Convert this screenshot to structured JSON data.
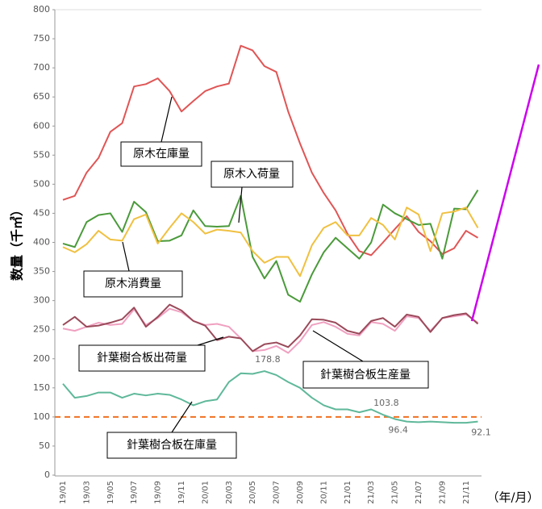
{
  "chart_data": {
    "type": "line",
    "y_label": "数量（千㎥）",
    "x_label": "（年/月）",
    "categories": [
      "19/01",
      null,
      "19/03",
      null,
      "19/05",
      null,
      "19/07",
      null,
      "19/09",
      null,
      "19/11",
      null,
      "20/01",
      null,
      "20/03",
      null,
      "20/05",
      null,
      "20/07",
      null,
      "20/09",
      null,
      "20/11",
      null,
      "21/01",
      null,
      "21/03",
      null,
      "21/05",
      null,
      "21/07",
      null,
      "21/09",
      null,
      "21/11",
      null
    ],
    "ylim": [
      0,
      800
    ],
    "yticks": [
      0,
      50,
      100,
      150,
      200,
      250,
      300,
      350,
      400,
      450,
      500,
      550,
      600,
      650,
      700,
      750,
      800
    ],
    "grid": false,
    "reference_line": {
      "value": 100,
      "color": "#f07020"
    },
    "series": [
      {
        "name": "原木在庫量",
        "color": "#e05555",
        "values": [
          473,
          480,
          520,
          545,
          590,
          605,
          668,
          672,
          682,
          660,
          625,
          643,
          660,
          668,
          673,
          738,
          730,
          703,
          693,
          625,
          570,
          520,
          485,
          455,
          415,
          385,
          378,
          400,
          423,
          445,
          418,
          402,
          380,
          390,
          420,
          408
        ]
      },
      {
        "name": "原木入荷量",
        "color": "#4a9a3a",
        "values": [
          398,
          392,
          435,
          447,
          450,
          418,
          470,
          452,
          402,
          403,
          412,
          455,
          428,
          427,
          428,
          480,
          375,
          338,
          368,
          310,
          298,
          345,
          383,
          408,
          390,
          372,
          400,
          465,
          450,
          440,
          430,
          432,
          372,
          458,
          457,
          490
        ]
      },
      {
        "name": "原木消費量",
        "color": "#f0c040",
        "values": [
          392,
          383,
          397,
          420,
          405,
          403,
          440,
          448,
          398,
          425,
          450,
          435,
          415,
          422,
          420,
          417,
          385,
          365,
          375,
          375,
          342,
          395,
          425,
          435,
          412,
          412,
          442,
          430,
          405,
          460,
          448,
          385,
          450,
          453,
          460,
          425
        ]
      },
      {
        "name": "針葉樹合板出荷量",
        "color": "#f0a0c0",
        "values": [
          252,
          248,
          255,
          262,
          258,
          260,
          285,
          258,
          270,
          286,
          280,
          265,
          258,
          260,
          255,
          235,
          213,
          215,
          222,
          210,
          230,
          258,
          263,
          255,
          243,
          240,
          263,
          260,
          248,
          273,
          270,
          248,
          270,
          273,
          276,
          262
        ]
      },
      {
        "name": "針葉樹合板生産量",
        "color": "#9a4a5a",
        "values": [
          258,
          272,
          255,
          257,
          262,
          268,
          288,
          255,
          272,
          293,
          283,
          265,
          257,
          232,
          238,
          235,
          213,
          225,
          228,
          220,
          240,
          268,
          267,
          262,
          248,
          243,
          265,
          270,
          255,
          276,
          272,
          246,
          270,
          275,
          278,
          260
        ]
      },
      {
        "name": "針葉樹合板在庫量",
        "color": "#5fb89a",
        "values": [
          157,
          133,
          136,
          142,
          142,
          133,
          140,
          137,
          140,
          138,
          130,
          120,
          127,
          130,
          160,
          175,
          174,
          178.8,
          172,
          160,
          150,
          133,
          120,
          113,
          113,
          108,
          113,
          103.8,
          96.4,
          92,
          91,
          92,
          91,
          90,
          90,
          92.1
        ],
        "data_labels": [
          null,
          null,
          null,
          null,
          null,
          null,
          null,
          null,
          null,
          null,
          null,
          null,
          null,
          null,
          null,
          null,
          null,
          178.8,
          null,
          null,
          null,
          null,
          null,
          null,
          null,
          null,
          null,
          103.8,
          96.4,
          null,
          null,
          null,
          null,
          null,
          null,
          92.1
        ]
      }
    ]
  }
}
